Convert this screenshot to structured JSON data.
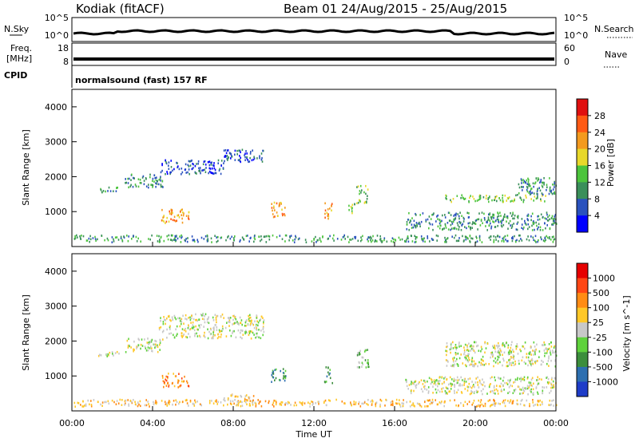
{
  "header": {
    "title": "Kodiak (fitACF)",
    "beam_info": "Beam 01  24/Aug/2015 - 25/Aug/2015"
  },
  "aux_panels": {
    "nsky_label": "N.Sky",
    "nsearch_label": "N.Search",
    "freq_label_line1": "Freq.",
    "freq_label_line2": "[MHz]",
    "nave_label": "Nave",
    "cpid_label": "CPID",
    "cpid_text": "normalsound (fast) 157 RF",
    "noise_left_ticks": [
      "10^5",
      "10^0"
    ],
    "noise_right_ticks": [
      "10^5",
      "10^0"
    ],
    "freq_ticks": [
      "18",
      "8"
    ],
    "nave_ticks": [
      "60",
      "0"
    ]
  },
  "chart_data": [
    {
      "type": "heatmap",
      "name": "power",
      "ylabel": "Slant Range [km]",
      "y_ticks": [
        "1000",
        "2000",
        "3000",
        "4000"
      ],
      "ylim": [
        0,
        4500
      ],
      "xlim": [
        0,
        24
      ],
      "colorbar": {
        "label": "Power [dB]",
        "ticks": [
          "4",
          "8",
          "12",
          "16",
          "20",
          "24",
          "28"
        ],
        "colors": [
          "#0000ff",
          "#2a52be",
          "#3a8f5a",
          "#4cc43c",
          "#e8d82a",
          "#f39a1e",
          "#ff5a14",
          "#e01010"
        ]
      },
      "echo_regions": [
        {
          "t0": 0.1,
          "t1": 24,
          "r0": 150,
          "r1": 350,
          "level": 2
        },
        {
          "t0": 1.3,
          "t1": 2.4,
          "r0": 1580,
          "r1": 1720,
          "level": 2
        },
        {
          "t0": 2.6,
          "t1": 4.5,
          "r0": 1700,
          "r1": 2100,
          "level": 2
        },
        {
          "t0": 4.3,
          "t1": 7.5,
          "r0": 2100,
          "r1": 2500,
          "level": 1
        },
        {
          "t0": 7.5,
          "t1": 9.5,
          "r0": 2450,
          "r1": 2800,
          "level": 1
        },
        {
          "t0": 4.4,
          "t1": 5.8,
          "r0": 700,
          "r1": 1100,
          "level": 5
        },
        {
          "t0": 9.8,
          "t1": 10.6,
          "r0": 850,
          "r1": 1300,
          "level": 5
        },
        {
          "t0": 12.5,
          "t1": 12.9,
          "r0": 800,
          "r1": 1300,
          "level": 5
        },
        {
          "t0": 13.7,
          "t1": 14.0,
          "r0": 950,
          "r1": 1250,
          "level": 3
        },
        {
          "t0": 14.1,
          "t1": 14.7,
          "r0": 1250,
          "r1": 1800,
          "level": 3
        },
        {
          "t0": 16.5,
          "t1": 24,
          "r0": 500,
          "r1": 1000,
          "level": 2
        },
        {
          "t0": 18.5,
          "t1": 23.5,
          "r0": 1300,
          "r1": 1500,
          "level": 3
        },
        {
          "t0": 22,
          "t1": 24,
          "r0": 1500,
          "r1": 2000,
          "level": 2
        }
      ]
    },
    {
      "type": "heatmap",
      "name": "velocity",
      "ylabel": "Slant Range [km]",
      "xlabel": "Time UT",
      "x_ticks": [
        "00:00",
        "04:00",
        "08:00",
        "12:00",
        "16:00",
        "20:00",
        "00:00"
      ],
      "y_ticks": [
        "1000",
        "2000",
        "3000",
        "4000"
      ],
      "ylim": [
        0,
        4500
      ],
      "xlim": [
        0,
        24
      ],
      "colorbar": {
        "label": "Velocity [m s^-1]",
        "ticks": [
          "1000",
          "500",
          "100",
          "25",
          "-25",
          "-100",
          "-500",
          "-1000"
        ],
        "colors": [
          "#1e3cc8",
          "#2d6fb0",
          "#3c8e3c",
          "#5fd23c",
          "#c8c8c8",
          "#ffc828",
          "#ff8c14",
          "#ff4614",
          "#e60000"
        ]
      },
      "echo_regions": [
        {
          "t0": 0.1,
          "t1": 24,
          "r0": 150,
          "r1": 350,
          "level": 5
        },
        {
          "t0": 1.3,
          "t1": 2.4,
          "r0": 1580,
          "r1": 1720,
          "level": 4
        },
        {
          "t0": 2.6,
          "t1": 4.5,
          "r0": 1700,
          "r1": 2100,
          "level": 4
        },
        {
          "t0": 4.3,
          "t1": 9.5,
          "r0": 2100,
          "r1": 2800,
          "level": 4
        },
        {
          "t0": 4.4,
          "t1": 5.8,
          "r0": 700,
          "r1": 1100,
          "level": 6
        },
        {
          "t0": 9.8,
          "t1": 10.6,
          "r0": 850,
          "r1": 1300,
          "level": 2
        },
        {
          "t0": 12.5,
          "t1": 12.9,
          "r0": 800,
          "r1": 1300,
          "level": 2
        },
        {
          "t0": 14.1,
          "t1": 14.7,
          "r0": 1250,
          "r1": 1800,
          "level": 3
        },
        {
          "t0": 7.5,
          "t1": 9.0,
          "r0": 300,
          "r1": 500,
          "level": 5
        },
        {
          "t0": 16.5,
          "t1": 24,
          "r0": 500,
          "r1": 1000,
          "level": 4
        },
        {
          "t0": 18.5,
          "t1": 24,
          "r0": 1300,
          "r1": 2000,
          "level": 4
        }
      ]
    }
  ]
}
